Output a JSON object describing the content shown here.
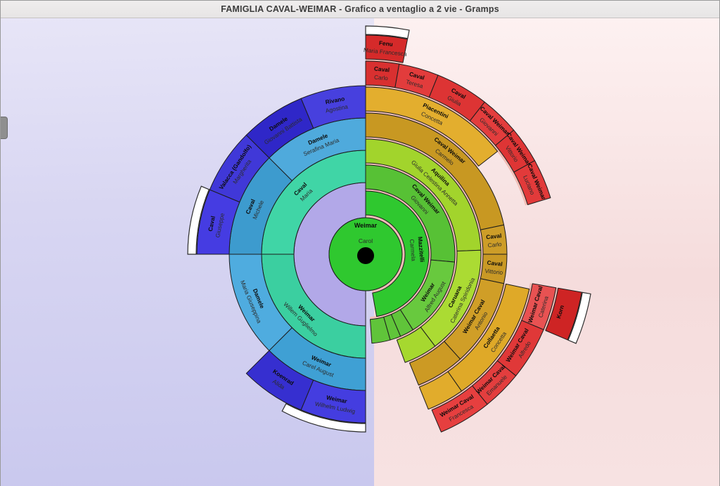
{
  "window": {
    "title": "FAMIGLIA CAVAL-WEIMAR - Grafico a ventaglio a 2 vie - Gramps"
  },
  "center": {
    "surname": "Weimar",
    "given": "Carol",
    "color": "#2fc82f",
    "dot_color": "#000000"
  },
  "colors": {
    "stroke": "#1c1c1c",
    "gap_arc": "#f1beb6",
    "indicator_fill": "#ffffff",
    "surname_text": "#0b0b0b",
    "given_text": "#2b2b2b"
  },
  "segments": [
    {
      "side": "left",
      "ring": 1,
      "start": -180,
      "end": 0,
      "color": "#b2a8e8",
      "surname": "",
      "given": "",
      "empty": true
    },
    {
      "side": "left",
      "ring": 2,
      "start": -90,
      "end": 0,
      "color": "#40d5a6",
      "surname": "Caval",
      "given": "Maria"
    },
    {
      "side": "left",
      "ring": 2,
      "start": -180,
      "end": -90,
      "color": "#3bcfa0",
      "surname": "Weimar",
      "given": "Willem Guglielmo"
    },
    {
      "side": "left",
      "ring": 3,
      "start": -45,
      "end": 0,
      "color": "#4faadc",
      "surname": "Damele",
      "given": "Serafina Maria"
    },
    {
      "side": "left",
      "ring": 3,
      "start": -90,
      "end": -45,
      "color": "#3d9bce",
      "surname": "Caval",
      "given": "Michele"
    },
    {
      "side": "left",
      "ring": 3,
      "start": -135,
      "end": -90,
      "color": "#4facdf",
      "surname": "Damele",
      "given": "Maria Giuseppina"
    },
    {
      "side": "left",
      "ring": 3,
      "start": -180,
      "end": -135,
      "color": "#3fa0d4",
      "surname": "Weimar",
      "given": "Carel August"
    },
    {
      "side": "left",
      "ring": 4,
      "start": -22.5,
      "end": 0,
      "color": "#4740de",
      "surname": "Rivano",
      "given": "Agostina"
    },
    {
      "side": "left",
      "ring": 4,
      "start": -45,
      "end": -22.5,
      "color": "#2f27c8",
      "surname": "Damele",
      "given": "Giovanni Battista"
    },
    {
      "side": "left",
      "ring": 4,
      "start": -67.5,
      "end": -45,
      "color": "#4038d8",
      "surname": "Valacca (Gandolfo)",
      "given": "Margherita"
    },
    {
      "side": "left",
      "ring": 4,
      "start": -90,
      "end": -67.5,
      "color": "#453ce2",
      "surname": "Caval",
      "given": "Giuseppe"
    },
    {
      "side": "left",
      "ring": 4,
      "start": -157.5,
      "end": -135,
      "color": "#362fd0",
      "surname": "Koenrad",
      "given": "Alida"
    },
    {
      "side": "left",
      "ring": 4,
      "start": -180,
      "end": -157.5,
      "color": "#443de0",
      "surname": "Weimar",
      "given": "Wilhelm Ludwig"
    },
    {
      "side": "right",
      "ring": 1,
      "start": 0,
      "end": 170,
      "color": "#2fc82f",
      "surname": "Mazzitelli",
      "given": "Carmela"
    },
    {
      "side": "right",
      "ring": 2,
      "start": 0,
      "end": 95,
      "color": "#57c135",
      "surname": "Caval Weimar",
      "given": "Giovanni"
    },
    {
      "side": "right",
      "ring": 2,
      "start": 95,
      "end": 148,
      "color": "#68c93e",
      "surname": "Weimar",
      "given": "Alfred August"
    },
    {
      "side": "right",
      "ring": 2,
      "start": 148,
      "end": 157,
      "color": "#60c43a",
      "surname": "",
      "given": "",
      "empty": true
    },
    {
      "side": "right",
      "ring": 2,
      "start": 157,
      "end": 164,
      "color": "#60c43a",
      "surname": "",
      "given": "",
      "empty": true
    },
    {
      "side": "right",
      "ring": 2,
      "start": 164,
      "end": 176,
      "color": "#60c43a",
      "surname": "",
      "given": "",
      "empty": true
    },
    {
      "side": "right",
      "ring": 3,
      "start": 0,
      "end": 88,
      "color": "#a2d42c",
      "surname": "Aquilina",
      "given": "Giulia Celestina Annetta"
    },
    {
      "side": "right",
      "ring": 3,
      "start": 88,
      "end": 143,
      "color": "#abdb33",
      "surname": "Caruana",
      "given": "Caterina Spiridonia"
    },
    {
      "side": "right",
      "ring": 3,
      "start": 143,
      "end": 160,
      "color": "#a6d82f",
      "surname": "",
      "given": "",
      "empty": true
    },
    {
      "side": "right",
      "ring": 4,
      "start": 0,
      "end": 78,
      "color": "#c89822",
      "surname": "Caval Weimar",
      "given": "Carmelo"
    },
    {
      "side": "right",
      "ring": 4,
      "start": 78,
      "end": 90,
      "color": "#cd9d28",
      "surname": "Caval",
      "given": "Carlo",
      "orient": "radial"
    },
    {
      "side": "right",
      "ring": 4,
      "start": 90,
      "end": 102,
      "color": "#c99925",
      "surname": "Caval",
      "given": "Vittorio",
      "orient": "radial"
    },
    {
      "side": "right",
      "ring": 4,
      "start": 102,
      "end": 138,
      "color": "#d09e27",
      "surname": "Weimar Caval",
      "given": "Antonio"
    },
    {
      "side": "right",
      "ring": 4,
      "start": 138,
      "end": 158,
      "color": "#cc9a24",
      "surname": "",
      "given": "",
      "empty": true
    },
    {
      "side": "right",
      "ring": 5,
      "start": 0,
      "end": 52,
      "color": "#e3ae2e",
      "surname": "Piacentini",
      "given": "Concetta"
    },
    {
      "side": "right",
      "ring": 5,
      "start": 102,
      "end": 145,
      "color": "#dfa928",
      "surname": "Collaetta",
      "given": "Concetta"
    },
    {
      "side": "right",
      "ring": 5,
      "start": 145,
      "end": 158,
      "color": "#e1ac2c",
      "surname": "",
      "given": "",
      "empty": true
    },
    {
      "side": "right",
      "ring": 6,
      "start": 0,
      "end": 10,
      "color": "#d93030",
      "surname": "Caval",
      "given": "Carlo"
    },
    {
      "side": "right",
      "ring": 6,
      "start": 10,
      "end": 22,
      "color": "#e23c3c",
      "surname": "Caval",
      "given": "Teresa"
    },
    {
      "side": "right",
      "ring": 6,
      "start": 22,
      "end": 38,
      "color": "#dd3434",
      "surname": "Caval",
      "given": "Giulia"
    },
    {
      "side": "right",
      "ring": 6,
      "start": 38,
      "end": 50,
      "color": "#e33d3d",
      "surname": "Caval Weimar",
      "given": "Giovanni"
    },
    {
      "side": "right",
      "ring": 6,
      "start": 50,
      "end": 61,
      "color": "#de3535",
      "surname": "Caval Weimar",
      "given": "Vittorio"
    },
    {
      "side": "right",
      "ring": 6,
      "start": 61,
      "end": 73,
      "color": "#e23a3a",
      "surname": "Caval Weimar",
      "given": "Luciano"
    },
    {
      "side": "right",
      "ring": 6,
      "start": 100,
      "end": 113,
      "color": "#e85252",
      "surname": "Weimar Caval",
      "given": "Caterina"
    },
    {
      "side": "right",
      "ring": 6,
      "start": 113,
      "end": 129,
      "color": "#e03838",
      "surname": "Weimar Caval",
      "given": "Alfredo"
    },
    {
      "side": "right",
      "ring": 6,
      "start": 129,
      "end": 141,
      "color": "#e33e3e",
      "surname": "Weimar Caval",
      "given": "Emanuele"
    },
    {
      "side": "right",
      "ring": 6,
      "start": 141,
      "end": 157,
      "color": "#e63f3f",
      "surname": "Weimar Caval",
      "given": "Francesca"
    },
    {
      "side": "right",
      "ring": 7,
      "start": 0,
      "end": 11,
      "color": "#d52a2a",
      "surname": "Fenu",
      "given": "Maria Francesca"
    },
    {
      "side": "right",
      "ring": 7,
      "start": 100,
      "end": 113,
      "color": "#ce2424",
      "surname": "Korn",
      "given": ""
    }
  ],
  "expand_indicators": [
    {
      "side": "left",
      "start": -90,
      "end": -67.5
    },
    {
      "side": "left",
      "start": -180,
      "end": -152
    },
    {
      "side": "right",
      "start": 0,
      "end": 11
    },
    {
      "side": "right",
      "start": 100,
      "end": 113
    }
  ]
}
